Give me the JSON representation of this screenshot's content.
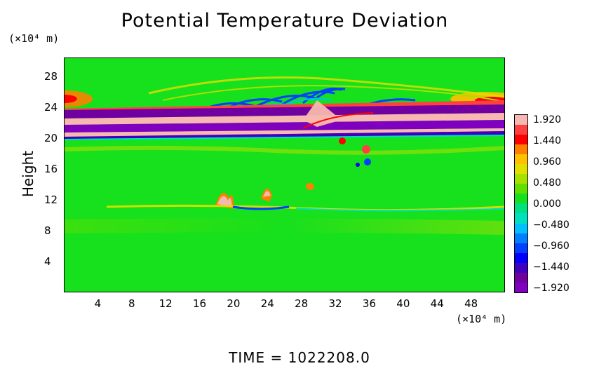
{
  "chart_data": {
    "type": "heatmap",
    "title": "Potential Temperature Deviation",
    "ylabel": "Height",
    "y_unit": "(×10⁴ m)",
    "x_unit": "(×10⁴ m)",
    "x_ticks": [
      "4",
      "8",
      "12",
      "16",
      "20",
      "24",
      "28",
      "32",
      "36",
      "40",
      "44",
      "48"
    ],
    "y_ticks": [
      "4",
      "8",
      "12",
      "16",
      "20",
      "24",
      "28"
    ],
    "xlim": [
      0,
      52
    ],
    "ylim": [
      0,
      30.5
    ],
    "colorbar": {
      "labels": [
        "1.920",
        "1.440",
        "0.960",
        "0.480",
        "0.000",
        "−0.480",
        "−0.960",
        "−1.440",
        "−1.920"
      ],
      "colors": [
        "#f6b8b0",
        "#ff4040",
        "#ff0000",
        "#ff8000",
        "#ffc000",
        "#e0e000",
        "#a8e000",
        "#60e000",
        "#17e01c",
        "#00e080",
        "#00e0c0",
        "#00c0ff",
        "#0080ff",
        "#0040ff",
        "#0000ff",
        "#4000c0",
        "#7000a0",
        "#8000c0"
      ]
    },
    "time_label": "TIME  =  1022208.0"
  }
}
